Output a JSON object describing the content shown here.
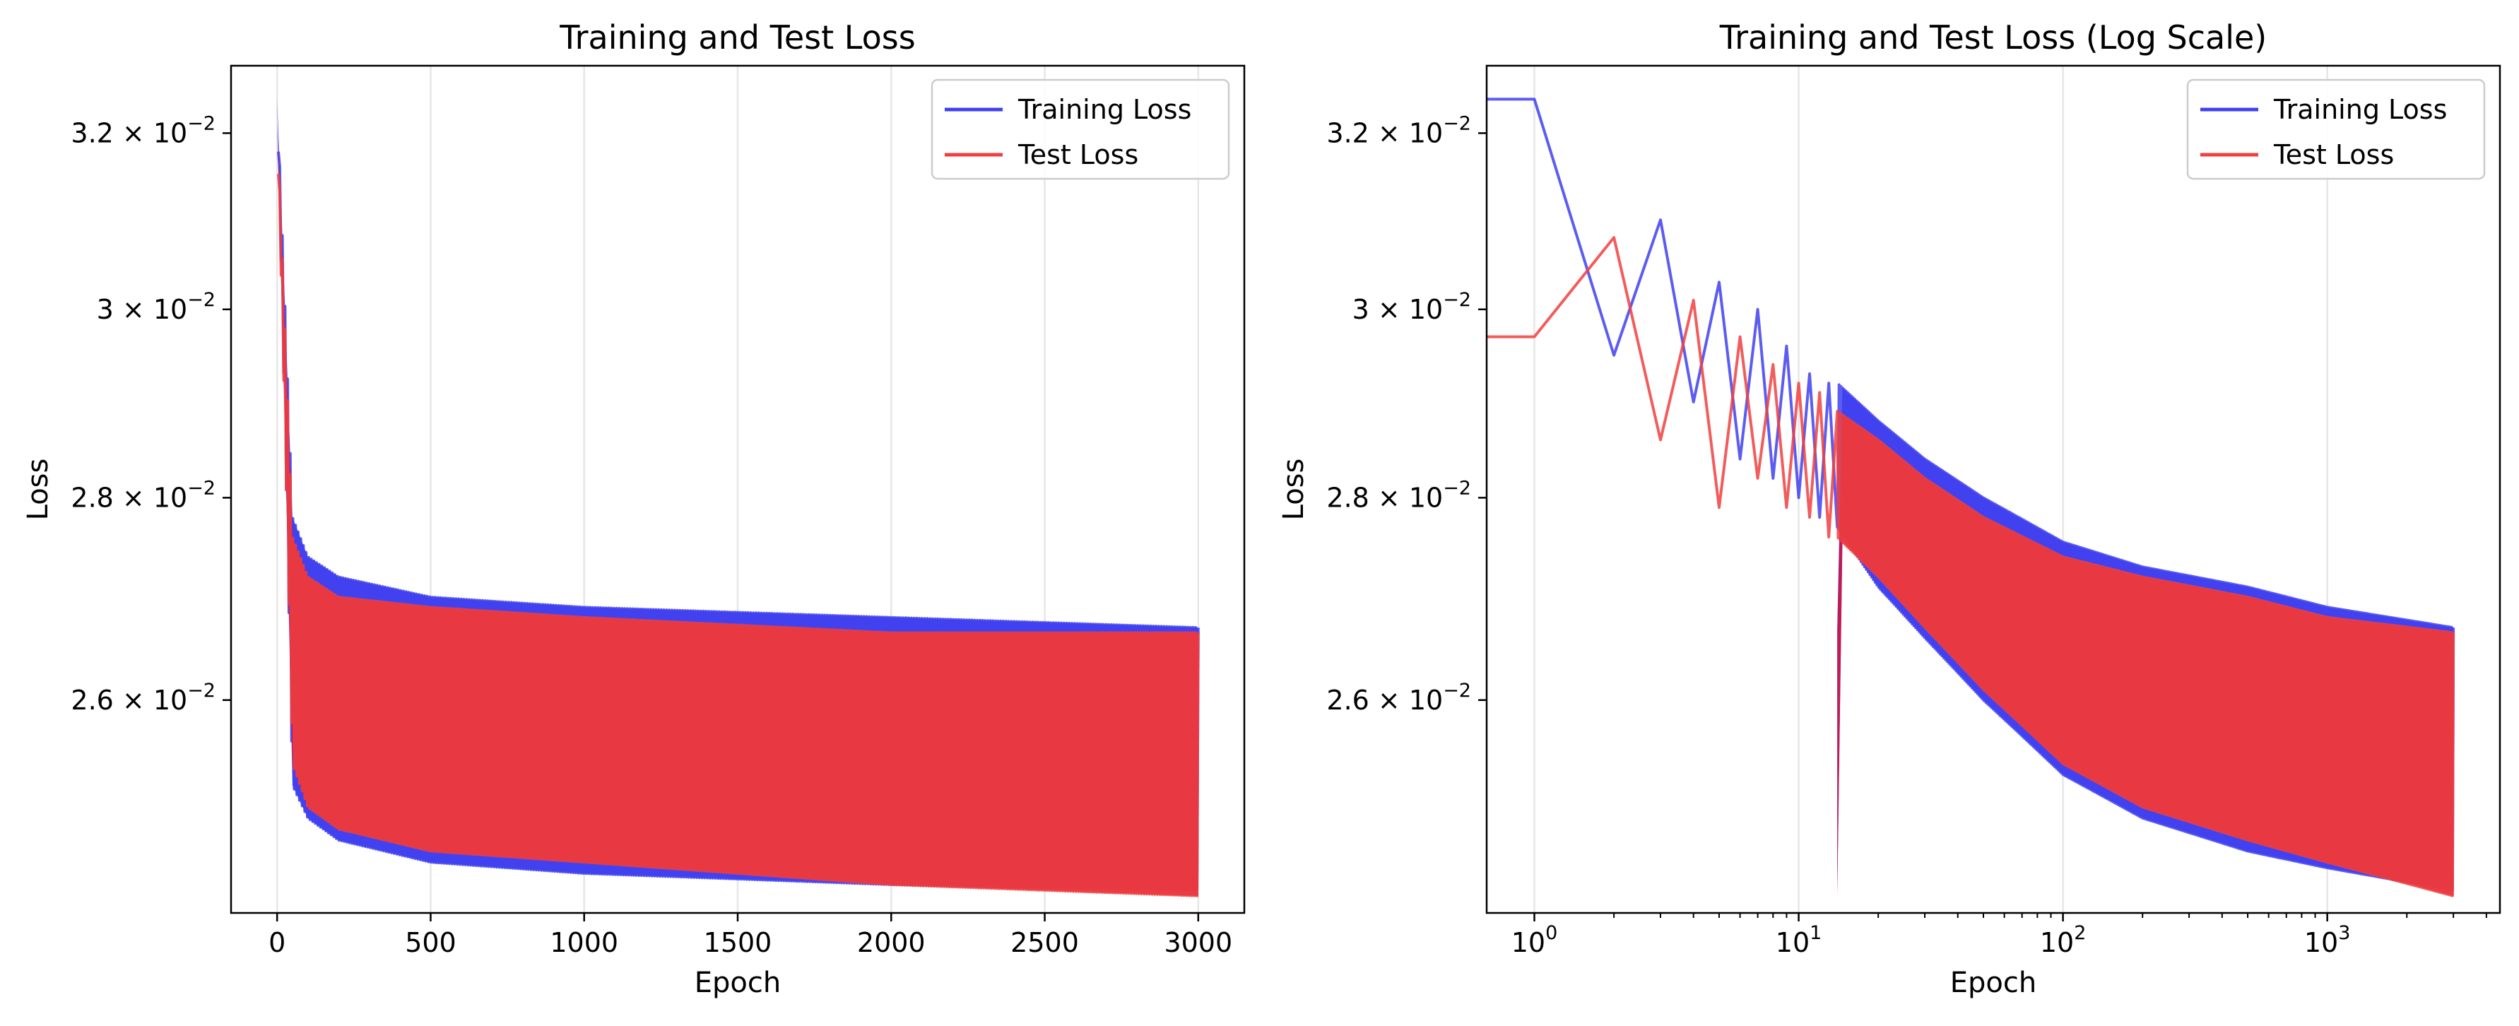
{
  "colors": {
    "training": "#4040f0",
    "test": "#f04040",
    "overlap": "#c8174a",
    "grid": "#e6e6e6",
    "axes": "#000000",
    "background": "#ffffff"
  },
  "chart_data": [
    {
      "type": "line",
      "title": "Training and Test Loss",
      "xlabel": "Epoch",
      "ylabel": "Loss",
      "xscale": "linear",
      "yscale": "log",
      "xlim": [
        -150,
        3150
      ],
      "ylim": [
        0.02405,
        0.0328
      ],
      "grid": "vertical",
      "legend_position": "top-right",
      "xticks": [
        {
          "value": 0,
          "label": "0"
        },
        {
          "value": 500,
          "label": "500"
        },
        {
          "value": 1000,
          "label": "1000"
        },
        {
          "value": 1500,
          "label": "1500"
        },
        {
          "value": 2000,
          "label": "2000"
        },
        {
          "value": 2500,
          "label": "2500"
        },
        {
          "value": 3000,
          "label": "3000"
        }
      ],
      "yticks": [
        {
          "value": 0.026,
          "mantissa": "2.6",
          "exponent": "−2"
        },
        {
          "value": 0.028,
          "mantissa": "2.8",
          "exponent": "−2"
        },
        {
          "value": 0.03,
          "mantissa": "3",
          "exponent": "−2"
        },
        {
          "value": 0.032,
          "mantissa": "3.2",
          "exponent": "−2"
        }
      ],
      "series": [
        {
          "name": "Training Loss",
          "color_key": "training",
          "oscillating": true,
          "start": 0.0324,
          "upper_envelope": [
            [
              0,
              0.0324
            ],
            [
              50,
              0.0278
            ],
            [
              100,
              0.0274
            ],
            [
              200,
              0.0272
            ],
            [
              500,
              0.027
            ],
            [
              1000,
              0.0269
            ],
            [
              2000,
              0.0268
            ],
            [
              3000,
              0.0267
            ]
          ],
          "lower_envelope": [
            [
              0,
              0.0324
            ],
            [
              50,
              0.0252
            ],
            [
              100,
              0.0249
            ],
            [
              200,
              0.0247
            ],
            [
              500,
              0.0245
            ],
            [
              1000,
              0.0244
            ],
            [
              2000,
              0.0243
            ],
            [
              3000,
              0.02425
            ]
          ]
        },
        {
          "name": "Test Loss",
          "color_key": "test",
          "oscillating": true,
          "start": 0.0321,
          "upper_envelope": [
            [
              0,
              0.0321
            ],
            [
              50,
              0.0276
            ],
            [
              100,
              0.0272
            ],
            [
              200,
              0.027
            ],
            [
              500,
              0.0269
            ],
            [
              1000,
              0.0268
            ],
            [
              2000,
              0.02665
            ],
            [
              3000,
              0.02665
            ]
          ],
          "lower_envelope": [
            [
              0,
              0.0321
            ],
            [
              50,
              0.0254
            ],
            [
              100,
              0.025
            ],
            [
              200,
              0.0248
            ],
            [
              500,
              0.0246
            ],
            [
              1000,
              0.0245
            ],
            [
              2000,
              0.0243
            ],
            [
              3000,
              0.0242
            ]
          ]
        }
      ]
    },
    {
      "type": "line",
      "title": "Training and Test Loss (Log Scale)",
      "xlabel": "Epoch",
      "ylabel": "Loss",
      "xscale": "log",
      "yscale": "log",
      "xlim": [
        0.66,
        4500
      ],
      "ylim": [
        0.02405,
        0.0328
      ],
      "grid": "vertical",
      "legend_position": "top-right",
      "xticks": [
        {
          "value": 1,
          "base": "10",
          "exponent": "0"
        },
        {
          "value": 10,
          "base": "10",
          "exponent": "1"
        },
        {
          "value": 100,
          "base": "10",
          "exponent": "2"
        },
        {
          "value": 1000,
          "base": "10",
          "exponent": "3"
        }
      ],
      "yticks": [
        {
          "value": 0.026,
          "mantissa": "2.6",
          "exponent": "−2"
        },
        {
          "value": 0.028,
          "mantissa": "2.8",
          "exponent": "−2"
        },
        {
          "value": 0.03,
          "mantissa": "3",
          "exponent": "−2"
        },
        {
          "value": 0.032,
          "mantissa": "3.2",
          "exponent": "−2"
        }
      ],
      "series": [
        {
          "name": "Training Loss",
          "color_key": "training",
          "oscillating": true,
          "points": [
            [
              0.5,
              0.0324
            ],
            [
              1,
              0.0324
            ],
            [
              2,
              0.0295
            ],
            [
              3,
              0.031
            ],
            [
              4,
              0.029
            ],
            [
              5,
              0.0303
            ],
            [
              6,
              0.0284
            ],
            [
              7,
              0.03
            ],
            [
              8,
              0.0282
            ],
            [
              9,
              0.0296
            ],
            [
              10,
              0.028
            ],
            [
              11,
              0.0293
            ],
            [
              12,
              0.0278
            ],
            [
              13,
              0.0292
            ],
            [
              14,
              0.0277
            ]
          ],
          "upper_envelope": [
            [
              14,
              0.0292
            ],
            [
              20,
              0.0288
            ],
            [
              30,
              0.0284
            ],
            [
              50,
              0.028
            ],
            [
              100,
              0.02755
            ],
            [
              200,
              0.0273
            ],
            [
              500,
              0.0271
            ],
            [
              1000,
              0.0269
            ],
            [
              3000,
              0.0267
            ]
          ],
          "lower_envelope": [
            [
              14,
              0.0277
            ],
            [
              20,
              0.0271
            ],
            [
              30,
              0.0266
            ],
            [
              50,
              0.026
            ],
            [
              100,
              0.0253
            ],
            [
              200,
              0.0249
            ],
            [
              500,
              0.0246
            ],
            [
              1000,
              0.02445
            ],
            [
              3000,
              0.02425
            ]
          ]
        },
        {
          "name": "Test Loss",
          "color_key": "test",
          "oscillating": true,
          "points": [
            [
              0.5,
              0.0297
            ],
            [
              1,
              0.0297
            ],
            [
              2,
              0.0308
            ],
            [
              3,
              0.0286
            ],
            [
              4,
              0.0301
            ],
            [
              5,
              0.0279
            ],
            [
              6,
              0.0297
            ],
            [
              7,
              0.0282
            ],
            [
              8,
              0.0294
            ],
            [
              9,
              0.0279
            ],
            [
              10,
              0.0292
            ],
            [
              11,
              0.0278
            ],
            [
              12,
              0.0291
            ],
            [
              13,
              0.0276
            ],
            [
              14,
              0.0289
            ]
          ],
          "upper_envelope": [
            [
              14,
              0.0289
            ],
            [
              20,
              0.0286
            ],
            [
              30,
              0.0282
            ],
            [
              50,
              0.0278
            ],
            [
              100,
              0.0274
            ],
            [
              200,
              0.0272
            ],
            [
              500,
              0.027
            ],
            [
              1000,
              0.0268
            ],
            [
              3000,
              0.02665
            ]
          ],
          "lower_envelope": [
            [
              14,
              0.0276
            ],
            [
              20,
              0.0272
            ],
            [
              30,
              0.0267
            ],
            [
              50,
              0.0261
            ],
            [
              100,
              0.0254
            ],
            [
              200,
              0.025
            ],
            [
              500,
              0.0247
            ],
            [
              1000,
              0.0245
            ],
            [
              3000,
              0.0242
            ]
          ]
        }
      ]
    }
  ]
}
